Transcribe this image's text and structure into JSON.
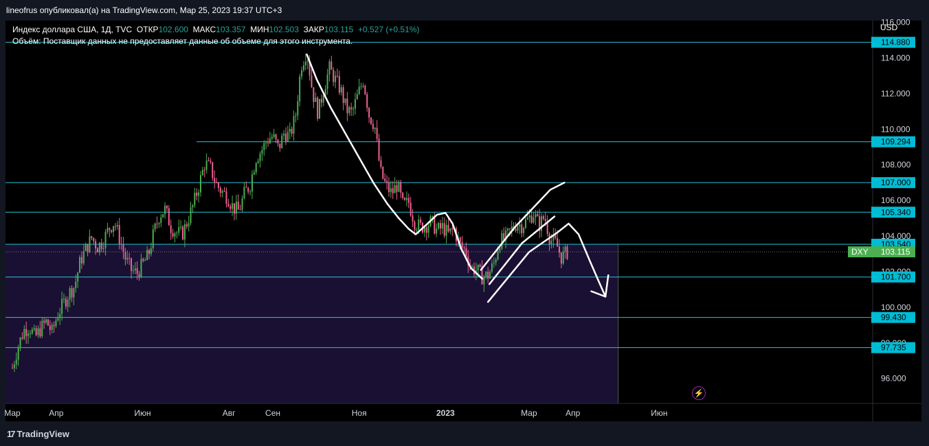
{
  "header": {
    "published_line": "lineofrus опубликовал(а) на TradingView.com, Мар 25, 2023 19:37 UTC+3"
  },
  "legend": {
    "symbol": "Индекс доллара США, 1Д, TVC",
    "open_label": "ОТКР",
    "open_value": "102.600",
    "high_label": "МАКС",
    "high_value": "103.357",
    "low_label": "МИН",
    "low_value": "102.503",
    "close_label": "ЗАКР",
    "close_value": "103.115",
    "change": "+0.527 (+0.51%)",
    "volume_note": "Объём: Поставщик данных не предоставляет данные об объеме для этого инструмента."
  },
  "brand": {
    "name": "TradingView",
    "logo_icon": "tradingview-logo-icon"
  },
  "chart_data": {
    "type": "candlestick",
    "symbol_tag": "DXY",
    "currency": "USD",
    "last_price": "103.115",
    "ylim": [
      94.6,
      116.1
    ],
    "y_ticks": [
      "96.000",
      "98.000",
      "100.000",
      "102.000",
      "104.000",
      "106.000",
      "108.000",
      "110.000",
      "112.000",
      "114.000",
      "116.000"
    ],
    "x_ticks": [
      {
        "label": "Мар",
        "day": 0
      },
      {
        "label": "Апр",
        "day": 31
      },
      {
        "label": "Июн",
        "day": 92
      },
      {
        "label": "Авг",
        "day": 153
      },
      {
        "label": "Сен",
        "day": 184
      },
      {
        "label": "Ноя",
        "day": 245
      },
      {
        "label": "2023",
        "day": 306,
        "bold": true
      },
      {
        "label": "Мар",
        "day": 365
      },
      {
        "label": "Апр",
        "day": 396
      },
      {
        "label": "Июн",
        "day": 457
      }
    ],
    "horizontal_levels": [
      {
        "value": 114.88,
        "label": "114.880",
        "start_day": 0
      },
      {
        "value": 109.294,
        "label": "109.294",
        "start_day": 135
      },
      {
        "value": 107.0,
        "label": "107.000",
        "start_day": 0
      },
      {
        "value": 105.34,
        "label": "105.340",
        "start_day": 0
      },
      {
        "value": 103.54,
        "label": "103.540",
        "start_day": 0
      },
      {
        "value": 101.7,
        "label": "101.700",
        "start_day": 0
      },
      {
        "value": 99.43,
        "label": "99.430",
        "start_day": 0
      },
      {
        "value": 97.735,
        "label": "97.735",
        "start_day": 0
      }
    ],
    "colors": {
      "up": "#26a69a",
      "down": "#ef5350",
      "bull_candle": "#4caf50",
      "bear_candle": "#f06292",
      "level": "#26c6da",
      "zone": "#1a1033",
      "label_bg": "#00bcd4",
      "dxy_bg": "#4caf50"
    },
    "zone": {
      "from": 94.6,
      "to": 103.54,
      "start_day": 0,
      "end_day": 428
    },
    "series": [
      {
        "d": 0,
        "v": 96.6
      },
      {
        "d": 4,
        "v": 97.8
      },
      {
        "d": 8,
        "v": 98.7
      },
      {
        "d": 12,
        "v": 98.9
      },
      {
        "d": 16,
        "v": 98.3
      },
      {
        "d": 20,
        "v": 98.8
      },
      {
        "d": 24,
        "v": 99.2
      },
      {
        "d": 28,
        "v": 98.6
      },
      {
        "d": 32,
        "v": 99.6
      },
      {
        "d": 36,
        "v": 100.2
      },
      {
        "d": 40,
        "v": 100.8
      },
      {
        "d": 44,
        "v": 101.2
      },
      {
        "d": 48,
        "v": 102.6
      },
      {
        "d": 52,
        "v": 103.3
      },
      {
        "d": 56,
        "v": 103.9
      },
      {
        "d": 60,
        "v": 103.4
      },
      {
        "d": 64,
        "v": 103.7
      },
      {
        "d": 68,
        "v": 104.4
      },
      {
        "d": 72,
        "v": 104.8
      },
      {
        "d": 76,
        "v": 103.8
      },
      {
        "d": 80,
        "v": 102.7
      },
      {
        "d": 84,
        "v": 102.1
      },
      {
        "d": 88,
        "v": 101.9
      },
      {
        "d": 92,
        "v": 102.4
      },
      {
        "d": 96,
        "v": 102.9
      },
      {
        "d": 100,
        "v": 104.2
      },
      {
        "d": 104,
        "v": 105.2
      },
      {
        "d": 108,
        "v": 105.5
      },
      {
        "d": 112,
        "v": 104.5
      },
      {
        "d": 116,
        "v": 104.2
      },
      {
        "d": 120,
        "v": 104.1
      },
      {
        "d": 124,
        "v": 104.9
      },
      {
        "d": 128,
        "v": 105.8
      },
      {
        "d": 132,
        "v": 106.9
      },
      {
        "d": 136,
        "v": 108.1
      },
      {
        "d": 140,
        "v": 107.8
      },
      {
        "d": 144,
        "v": 106.9
      },
      {
        "d": 148,
        "v": 106.5
      },
      {
        "d": 152,
        "v": 106.2
      },
      {
        "d": 156,
        "v": 105.6
      },
      {
        "d": 160,
        "v": 105.4
      },
      {
        "d": 164,
        "v": 106.4
      },
      {
        "d": 168,
        "v": 106.9
      },
      {
        "d": 172,
        "v": 108.4
      },
      {
        "d": 176,
        "v": 108.8
      },
      {
        "d": 180,
        "v": 109.4
      },
      {
        "d": 184,
        "v": 109.6
      },
      {
        "d": 188,
        "v": 108.9
      },
      {
        "d": 192,
        "v": 109.8
      },
      {
        "d": 196,
        "v": 109.6
      },
      {
        "d": 200,
        "v": 110.7
      },
      {
        "d": 204,
        "v": 113.6
      },
      {
        "d": 208,
        "v": 114.4
      },
      {
        "d": 212,
        "v": 112.1
      },
      {
        "d": 216,
        "v": 110.9
      },
      {
        "d": 220,
        "v": 112.3
      },
      {
        "d": 224,
        "v": 113.4
      },
      {
        "d": 228,
        "v": 112.8
      },
      {
        "d": 232,
        "v": 112.2
      },
      {
        "d": 236,
        "v": 111.1
      },
      {
        "d": 240,
        "v": 110.9
      },
      {
        "d": 244,
        "v": 111.9
      },
      {
        "d": 248,
        "v": 112.8
      },
      {
        "d": 252,
        "v": 110.8
      },
      {
        "d": 256,
        "v": 110.2
      },
      {
        "d": 260,
        "v": 107.6
      },
      {
        "d": 264,
        "v": 106.8
      },
      {
        "d": 268,
        "v": 106.4
      },
      {
        "d": 272,
        "v": 106.9
      },
      {
        "d": 276,
        "v": 105.7
      },
      {
        "d": 280,
        "v": 105.9
      },
      {
        "d": 284,
        "v": 104.8
      },
      {
        "d": 288,
        "v": 104.5
      },
      {
        "d": 292,
        "v": 104.6
      },
      {
        "d": 296,
        "v": 104.8
      },
      {
        "d": 300,
        "v": 104.3
      },
      {
        "d": 304,
        "v": 104.5
      },
      {
        "d": 308,
        "v": 104.1
      },
      {
        "d": 312,
        "v": 104.4
      },
      {
        "d": 316,
        "v": 103.5
      },
      {
        "d": 320,
        "v": 103.2
      },
      {
        "d": 324,
        "v": 102.2
      },
      {
        "d": 328,
        "v": 102.1
      },
      {
        "d": 332,
        "v": 101.7
      },
      {
        "d": 336,
        "v": 101.8
      },
      {
        "d": 340,
        "v": 102.4
      },
      {
        "d": 344,
        "v": 103.7
      },
      {
        "d": 348,
        "v": 103.8
      },
      {
        "d": 352,
        "v": 104.3
      },
      {
        "d": 356,
        "v": 104.7
      },
      {
        "d": 360,
        "v": 104.6
      },
      {
        "d": 364,
        "v": 104.9
      },
      {
        "d": 368,
        "v": 105.3
      },
      {
        "d": 372,
        "v": 104.6
      },
      {
        "d": 376,
        "v": 105.1
      },
      {
        "d": 380,
        "v": 103.8
      },
      {
        "d": 384,
        "v": 103.6
      },
      {
        "d": 388,
        "v": 102.8
      },
      {
        "d": 392,
        "v": 103.1
      }
    ]
  }
}
